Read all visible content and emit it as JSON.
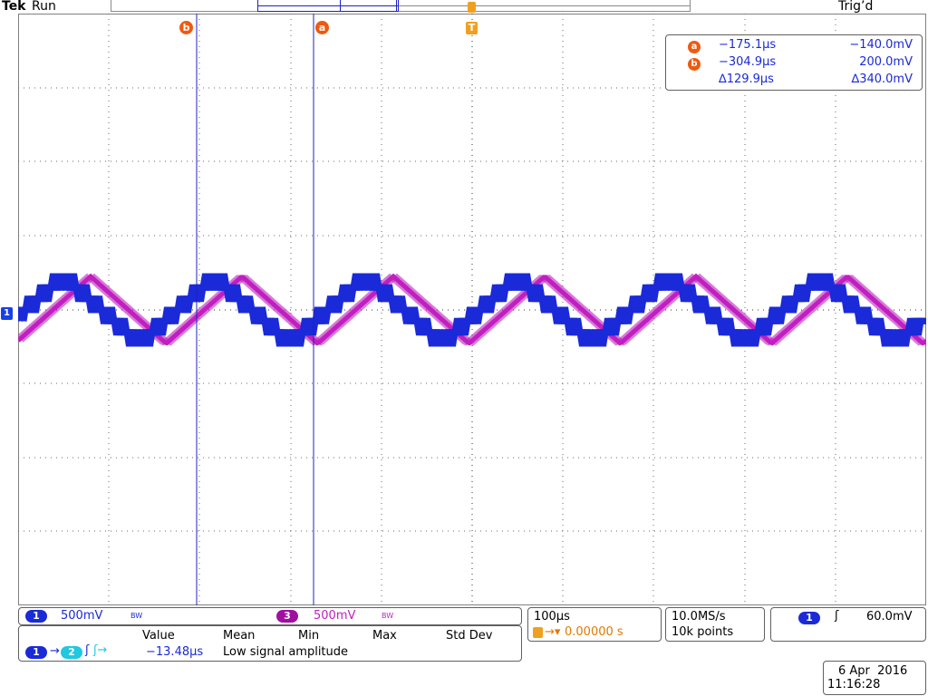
{
  "header": {
    "brand": "Tek",
    "run_state": "Run",
    "trigger_status": "Trig’d"
  },
  "cursors": {
    "a_label": "a",
    "b_label": "b",
    "trigger_label": "T",
    "ch1_ground_label": "1",
    "readout": {
      "a": {
        "time": "−175.1µs",
        "value": "−140.0mV"
      },
      "b": {
        "time": "−304.9µs",
        "value": "200.0mV"
      },
      "delta": {
        "time": "∆129.9µs",
        "value": "∆340.0mV"
      }
    }
  },
  "channels": {
    "ch1": {
      "number": "1",
      "scale": "500mV",
      "bw": "BW",
      "color": "#1a2ad8"
    },
    "ch3": {
      "number": "3",
      "scale": "500mV",
      "bw": "BW",
      "color": "#c020c0"
    }
  },
  "measurement": {
    "headers": [
      "Value",
      "Mean",
      "Min",
      "Max",
      "Std Dev"
    ],
    "source_a": "1",
    "source_b": "2",
    "value": "−13.48µs",
    "note": "Low signal amplitude"
  },
  "timebase": {
    "scale": "100µs",
    "position": "0.00000 s"
  },
  "acquisition": {
    "rate": "10.0MS/s",
    "points": "10k points"
  },
  "trigger": {
    "source": "1",
    "level": "60.0mV"
  },
  "datetime": {
    "date": "6 Apr  2016",
    "time": "11:16:28"
  },
  "colors": {
    "ch1": "#1a2ad8",
    "ch3": "#c020c0",
    "cursor": "#2020c0",
    "marker": "#ee5a10",
    "trigger": "#f0a020",
    "ch2_chip": "#20c8e0"
  }
}
